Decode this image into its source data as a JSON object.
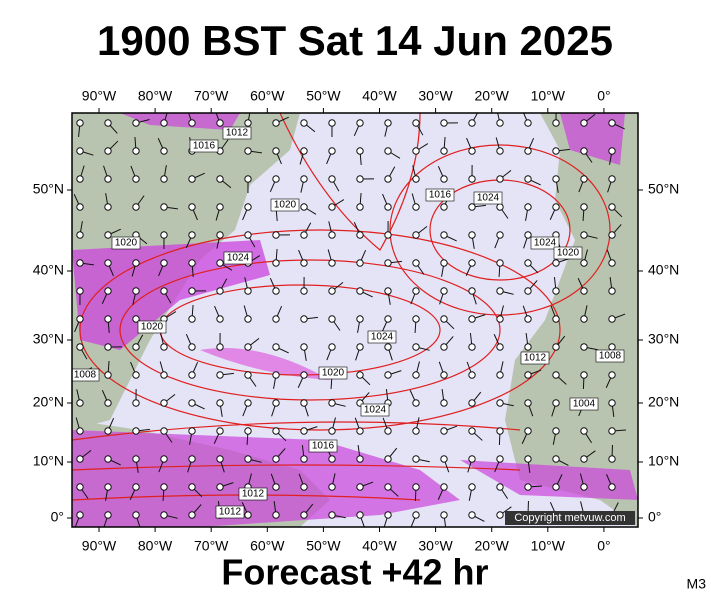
{
  "header": {
    "title": "1900 BST Sat 14 Jun 2025"
  },
  "map": {
    "lon_labels": [
      "90°W",
      "80°W",
      "70°W",
      "60°W",
      "50°W",
      "40°W",
      "30°W",
      "20°W",
      "10°W",
      "0°"
    ],
    "lat_labels": [
      "50°N",
      "40°N",
      "30°N",
      "20°N",
      "10°N",
      "0°"
    ],
    "isobar_labels": [
      "1016",
      "1012",
      "1020",
      "1024",
      "1020",
      "1016",
      "1020",
      "1024",
      "1024",
      "1020",
      "1024",
      "1024",
      "1020",
      "1016",
      "1012",
      "1012",
      "1008",
      "1004",
      "1012",
      "1008"
    ],
    "copyright": "Copyright metvuw.com"
  },
  "footer": {
    "forecast": "Forecast +42 hr",
    "model": "M3"
  }
}
